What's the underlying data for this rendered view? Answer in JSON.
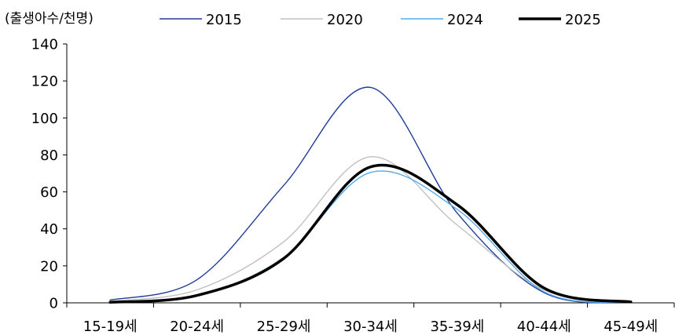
{
  "chart_data": {
    "type": "line",
    "unit_label": "(출생아수/천명)",
    "categories": [
      "15-19세",
      "20-24세",
      "25-29세",
      "30-34세",
      "35-39세",
      "40-44세",
      "45-49세"
    ],
    "ylim": [
      0,
      140
    ],
    "yticks": [
      0,
      20,
      40,
      60,
      80,
      100,
      120,
      140
    ],
    "grid": false,
    "legend_position": "top",
    "series": [
      {
        "name": "2015",
        "values": [
          1.5,
          12.5,
          63.5,
          116.5,
          48.5,
          5.5,
          0.2
        ],
        "color": "#1f3d99",
        "width": 1.4
      },
      {
        "name": "2020",
        "values": [
          0.8,
          7.0,
          33.0,
          79.0,
          42.0,
          7.0,
          0.3
        ],
        "color": "#c0c0c0",
        "width": 1.4
      },
      {
        "name": "2024",
        "values": [
          0.3,
          4.0,
          24.5,
          70.5,
          50.5,
          6.0,
          0.3
        ],
        "color": "#55a8e8",
        "width": 1.4
      },
      {
        "name": "2025",
        "values": [
          0.3,
          4.0,
          24.0,
          73.5,
          53.0,
          8.0,
          0.5
        ],
        "color": "#000000",
        "width": 3.5
      }
    ]
  }
}
